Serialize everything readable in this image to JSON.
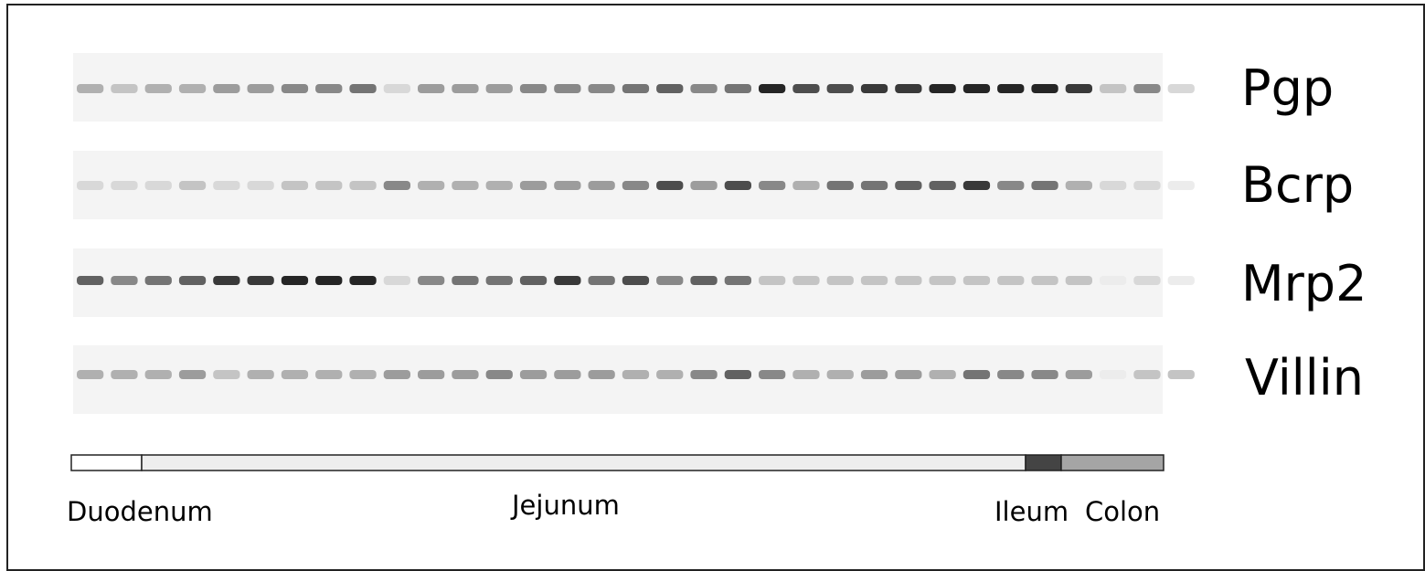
{
  "blots": [
    {
      "label": "Pgp"
    },
    {
      "label": "Bcrp"
    },
    {
      "label": "Mrp2"
    },
    {
      "label": "Villin"
    }
  ],
  "regions": [
    {
      "label": "Duodenum"
    },
    {
      "label": "Jejunum"
    },
    {
      "label": "Ileum"
    },
    {
      "label": "Colon"
    }
  ]
}
